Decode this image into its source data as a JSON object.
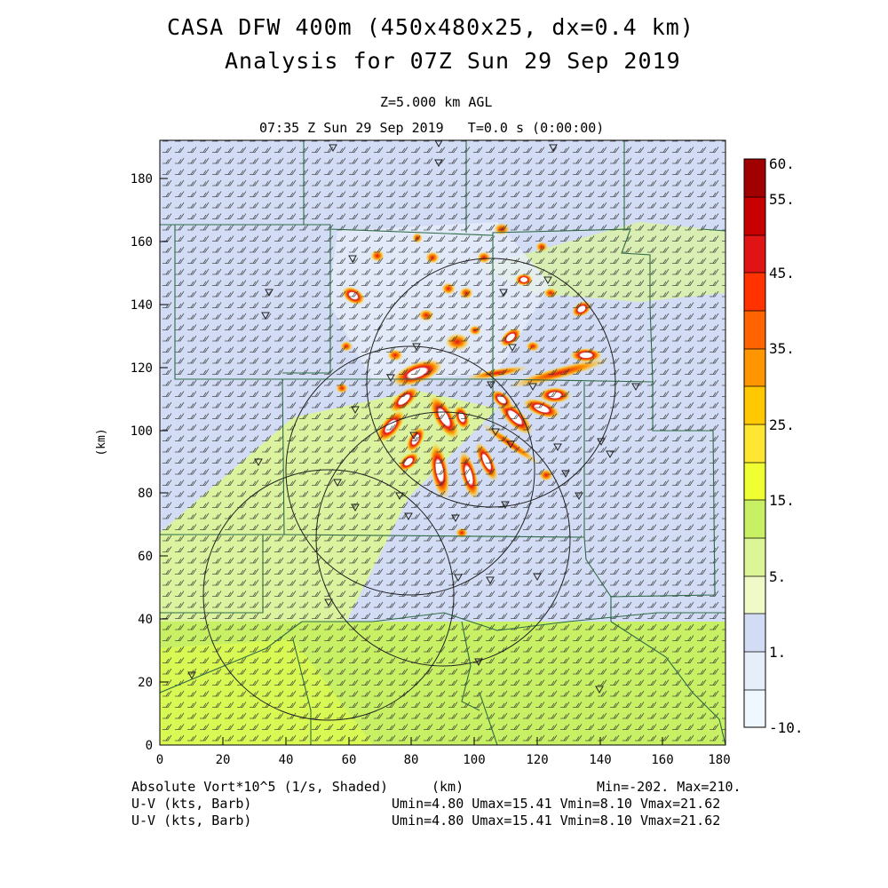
{
  "header": {
    "title_line1": "CASA DFW 400m (450x480x25, dx=0.4 km)",
    "title_line2": "Analysis for 07Z Sun 29 Sep 2019",
    "level": "Z=5.000 km AGL",
    "time": "07:35 Z Sun 29 Sep 2019   T=0.0 s (0:00:00)"
  },
  "axes": {
    "x_ticks": [
      "0",
      "20",
      "40",
      "60",
      "80",
      "100",
      "120",
      "140",
      "160",
      "180"
    ],
    "y_ticks": [
      "0",
      "20",
      "40",
      "60",
      "80",
      "100",
      "120",
      "140",
      "160",
      "180"
    ],
    "x_label": "(km)",
    "y_label": "(km)",
    "x_range_km": [
      0,
      180
    ],
    "y_range_km": [
      0,
      192
    ]
  },
  "colorbar": {
    "labels": [
      "60.",
      "55.",
      "45.",
      "35.",
      "25.",
      "15.",
      "5.",
      "1.",
      "-10."
    ],
    "colors": [
      "#a00000",
      "#c80000",
      "#e01414",
      "#ff3200",
      "#ff6400",
      "#ff9600",
      "#ffc800",
      "#ffe632",
      "#f0ff32",
      "#c8f064",
      "#dcf596",
      "#f0fac8",
      "#d2dcf5",
      "#e6eefa",
      "#f0f8ff"
    ]
  },
  "footer": {
    "field": "Absolute Vort*10^5 (1/s, Shaded)",
    "km": "(km)",
    "minmax": "Min=-202. Max=210.",
    "wind1": "U-V (kts, Barb)",
    "stats1": "Umin=4.80 Umax=15.41 Vmin=8.10 Vmax=21.62",
    "wind2": "U-V (kts, Barb)",
    "stats2": "Umin=4.80 Umax=15.41 Vmin=8.10 Vmax=21.62"
  }
}
